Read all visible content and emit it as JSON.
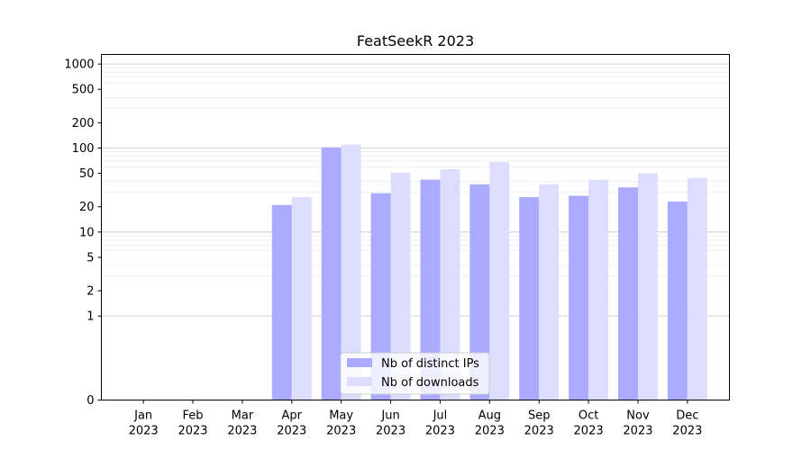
{
  "chart_data": {
    "type": "bar",
    "title": "FeatSeekR 2023",
    "xlabel": "",
    "ylabel": "",
    "y_scale": "symlog",
    "ylim": [
      0,
      1300
    ],
    "y_ticks": [
      {
        "value": 0,
        "label": "0"
      },
      {
        "value": 1,
        "label": "1"
      },
      {
        "value": 2,
        "label": "2"
      },
      {
        "value": 5,
        "label": "5"
      },
      {
        "value": 10,
        "label": "10"
      },
      {
        "value": 20,
        "label": "20"
      },
      {
        "value": 50,
        "label": "50"
      },
      {
        "value": 100,
        "label": "100"
      },
      {
        "value": 200,
        "label": "200"
      },
      {
        "value": 500,
        "label": "500"
      },
      {
        "value": 1000,
        "label": "1000"
      }
    ],
    "categories": [
      [
        "Jan",
        "2023"
      ],
      [
        "Feb",
        "2023"
      ],
      [
        "Mar",
        "2023"
      ],
      [
        "Apr",
        "2023"
      ],
      [
        "May",
        "2023"
      ],
      [
        "Jun",
        "2023"
      ],
      [
        "Jul",
        "2023"
      ],
      [
        "Aug",
        "2023"
      ],
      [
        "Sep",
        "2023"
      ],
      [
        "Oct",
        "2023"
      ],
      [
        "Nov",
        "2023"
      ],
      [
        "Dec",
        "2023"
      ]
    ],
    "series": [
      {
        "name": "Nb of distinct IPs",
        "color": "#aaaaff",
        "values": [
          0,
          0,
          0,
          21,
          102,
          29,
          42,
          37,
          26,
          27,
          34,
          23
        ]
      },
      {
        "name": "Nb of downloads",
        "color": "#ddddff",
        "values": [
          0,
          0,
          0,
          26,
          110,
          51,
          56,
          68,
          37,
          42,
          50,
          44
        ]
      }
    ],
    "grid": "horizontal",
    "legend_position": "bottom-center"
  }
}
